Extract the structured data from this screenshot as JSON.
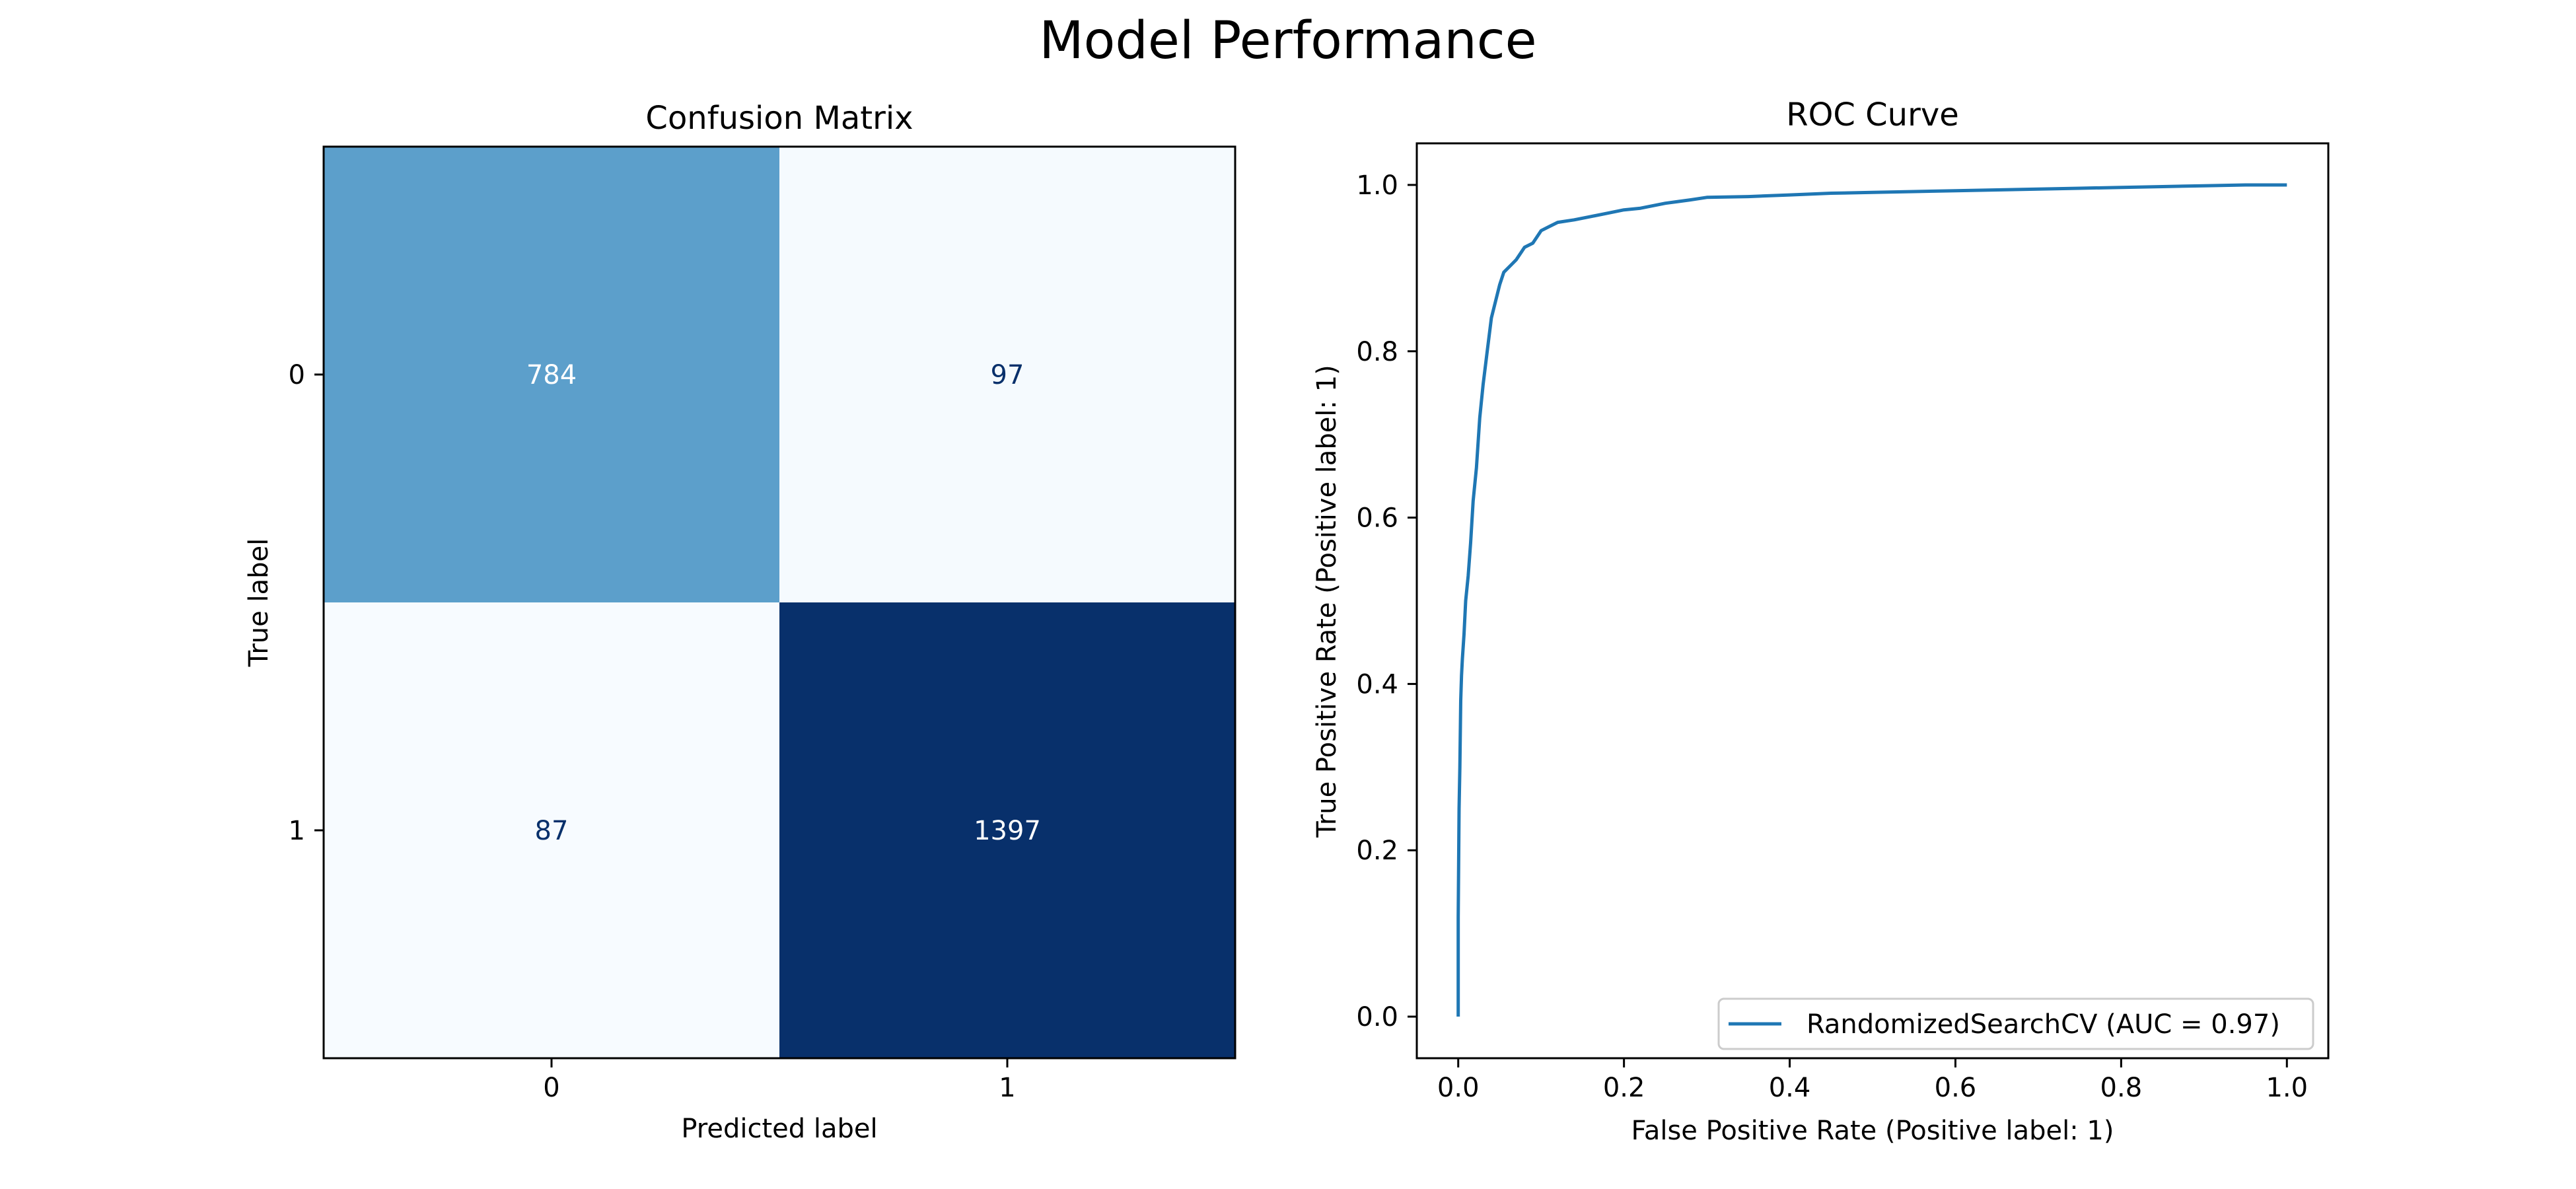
{
  "figure": {
    "title": "Model Performance"
  },
  "chart_data": [
    {
      "type": "heatmap",
      "title": "Confusion Matrix",
      "xlabel": "Predicted label",
      "ylabel": "True label",
      "x_categories": [
        "0",
        "1"
      ],
      "y_categories": [
        "0",
        "1"
      ],
      "values": [
        [
          784,
          97
        ],
        [
          87,
          1397
        ]
      ],
      "colormap": "Blues",
      "colors": {
        "light": "#f7fbff",
        "mid": "#62a7d2",
        "dark": "#08306b",
        "text_light": "#ffffff",
        "text_dark": "#08306b"
      }
    },
    {
      "type": "line",
      "title": "ROC Curve",
      "xlabel": "False Positive Rate (Positive label: 1)",
      "ylabel": "True Positive Rate (Positive label: 1)",
      "xlim": [
        -0.05,
        1.05
      ],
      "ylim": [
        -0.05,
        1.05
      ],
      "xticks": [
        "0.0",
        "0.2",
        "0.4",
        "0.6",
        "0.8",
        "1.0"
      ],
      "yticks": [
        "0.0",
        "0.2",
        "0.4",
        "0.6",
        "0.8",
        "1.0"
      ],
      "grid": false,
      "legend_position": "bottom-right",
      "color": "#1f77b4",
      "series": [
        {
          "name": "RandomizedSearchCV (AUC = 0.97)",
          "x": [
            0.0,
            0.0,
            0.001,
            0.002,
            0.003,
            0.004,
            0.005,
            0.007,
            0.009,
            0.012,
            0.015,
            0.018,
            0.022,
            0.026,
            0.03,
            0.035,
            0.04,
            0.045,
            0.05,
            0.055,
            0.06,
            0.07,
            0.08,
            0.09,
            0.1,
            0.11,
            0.12,
            0.14,
            0.16,
            0.18,
            0.2,
            0.22,
            0.25,
            0.28,
            0.3,
            0.35,
            0.4,
            0.45,
            0.5,
            0.55,
            0.6,
            0.65,
            0.7,
            0.75,
            0.8,
            0.85,
            0.9,
            0.95,
            1.0
          ],
          "y": [
            0.0,
            0.12,
            0.25,
            0.3,
            0.38,
            0.41,
            0.43,
            0.46,
            0.5,
            0.53,
            0.57,
            0.62,
            0.66,
            0.72,
            0.76,
            0.8,
            0.84,
            0.86,
            0.88,
            0.895,
            0.9,
            0.91,
            0.925,
            0.93,
            0.945,
            0.95,
            0.955,
            0.958,
            0.962,
            0.966,
            0.97,
            0.972,
            0.978,
            0.982,
            0.985,
            0.986,
            0.988,
            0.99,
            0.991,
            0.992,
            0.993,
            0.994,
            0.995,
            0.996,
            0.997,
            0.998,
            0.999,
            1.0,
            1.0
          ]
        }
      ]
    }
  ]
}
